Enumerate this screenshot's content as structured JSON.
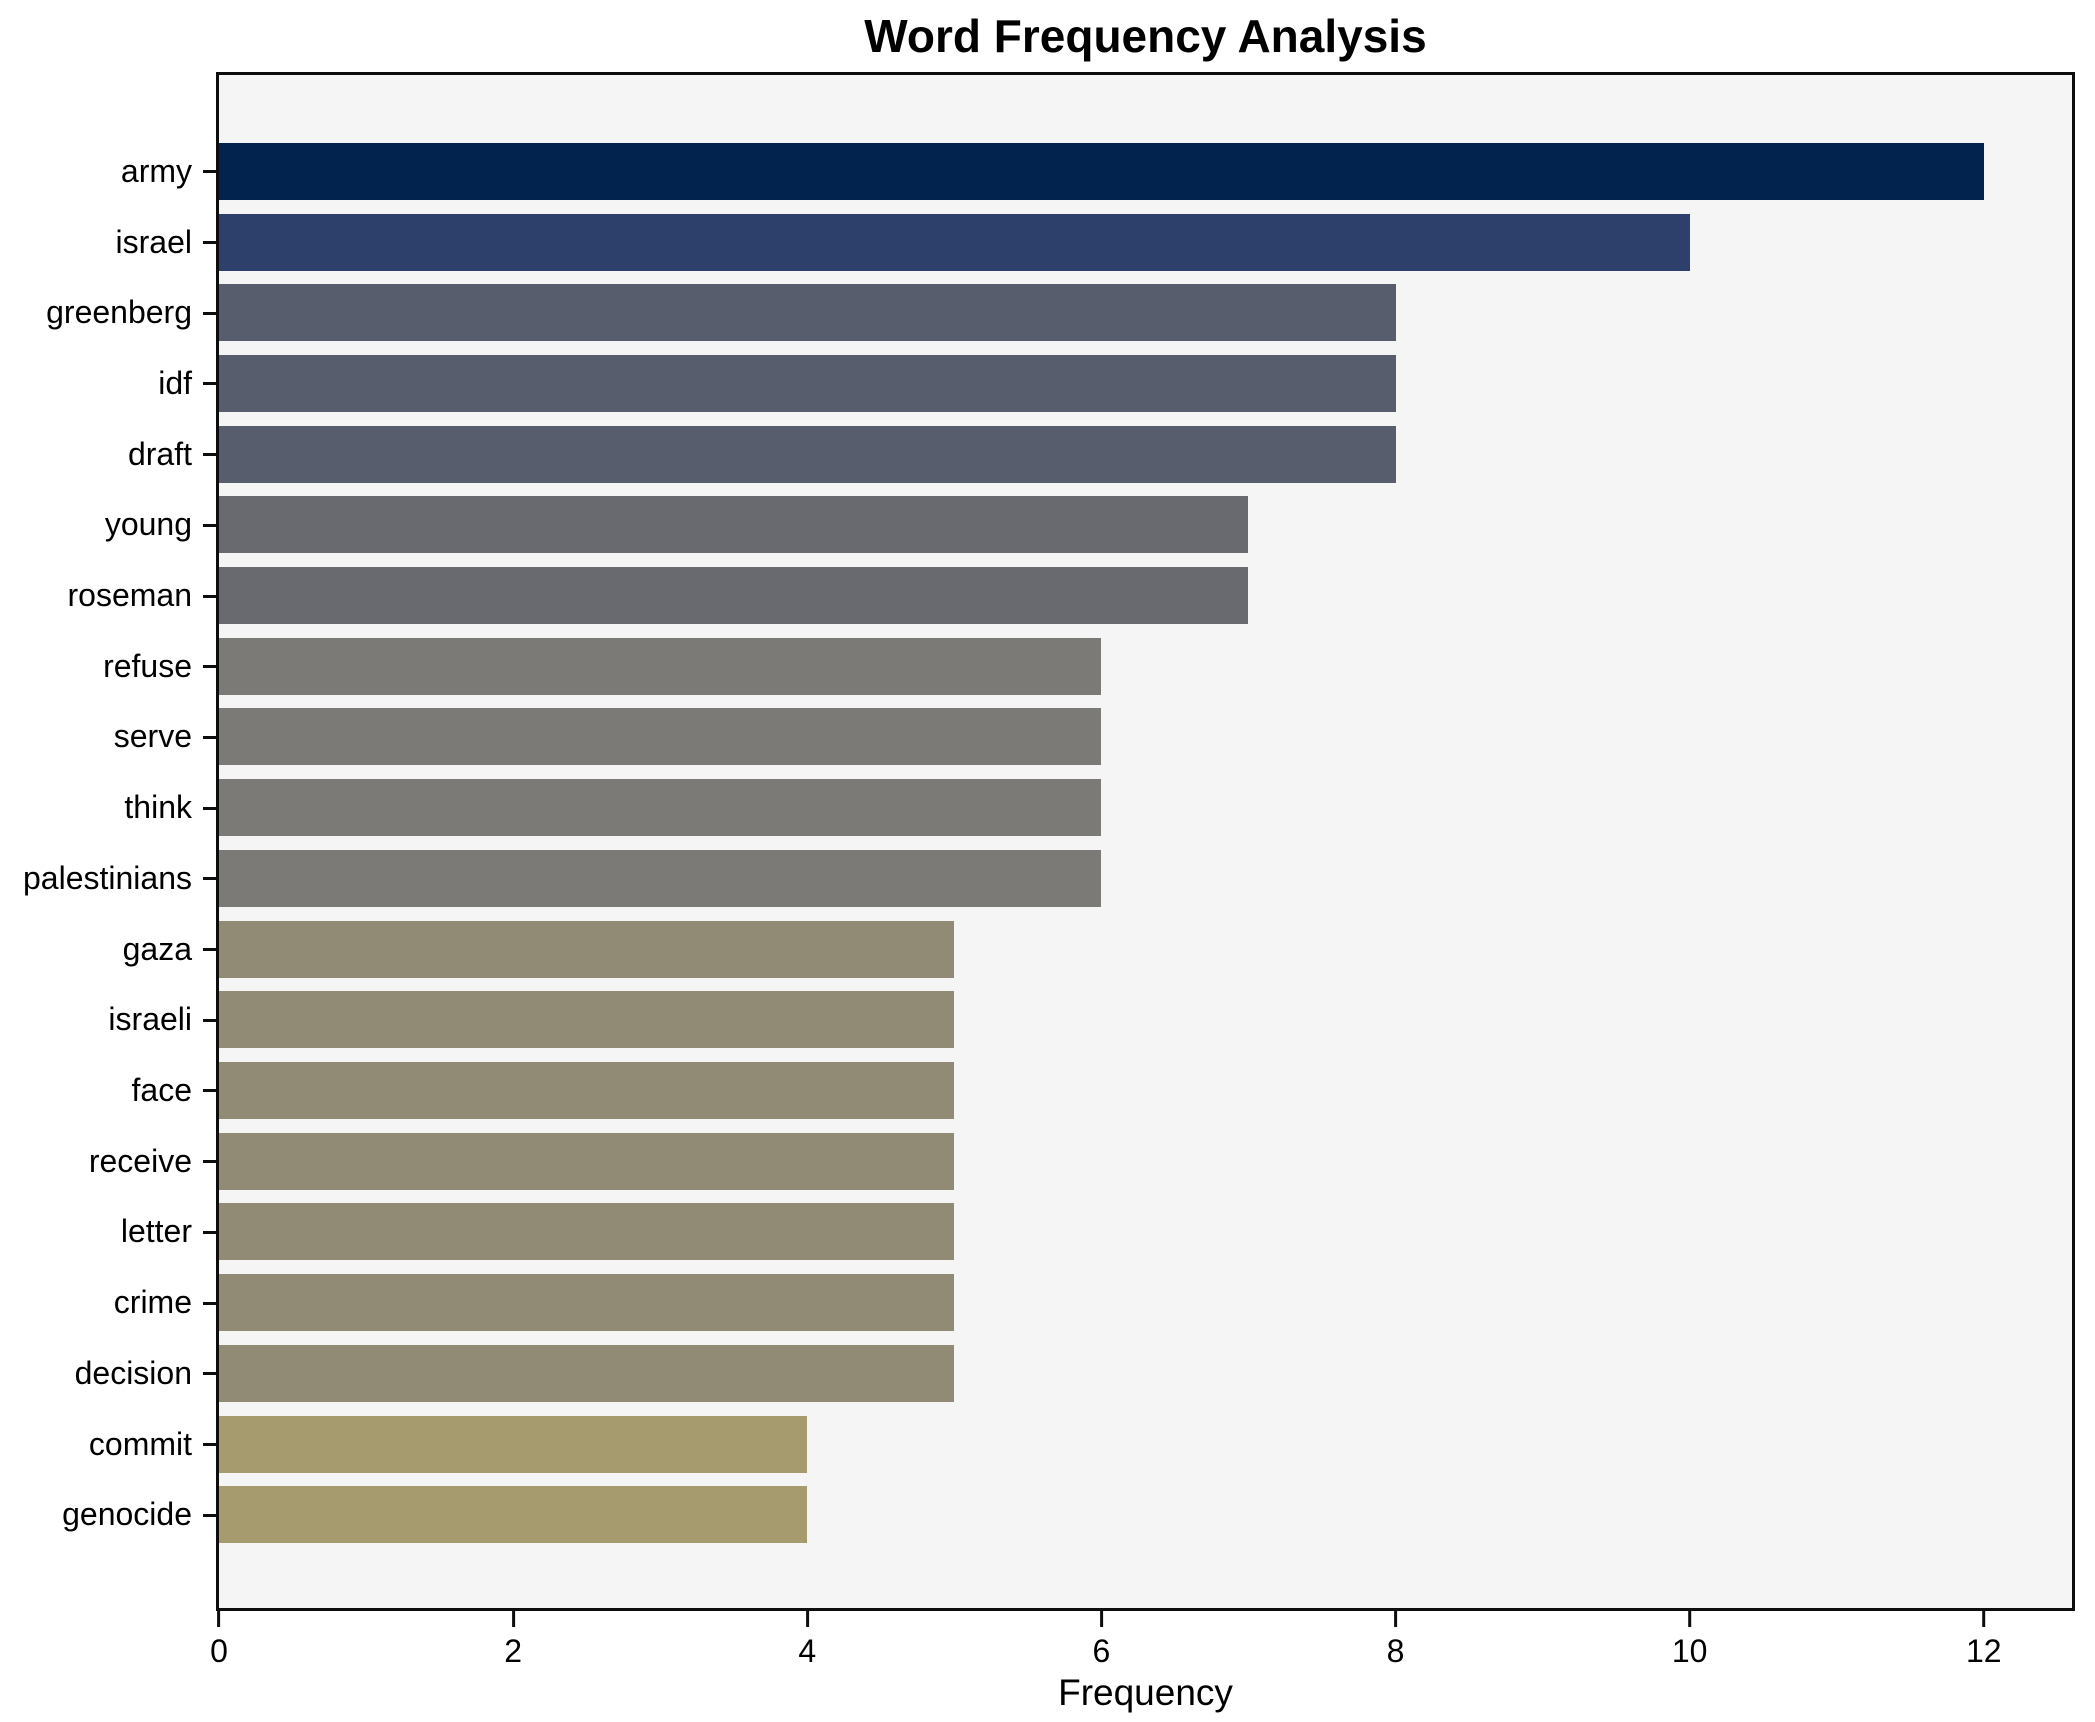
{
  "chart_data": {
    "type": "bar",
    "orientation": "horizontal",
    "title": "Word Frequency Analysis",
    "xlabel": "Frequency",
    "ylabel": "",
    "categories": [
      "army",
      "israel",
      "greenberg",
      "idf",
      "draft",
      "young",
      "roseman",
      "refuse",
      "serve",
      "think",
      "palestinians",
      "gaza",
      "israeli",
      "face",
      "receive",
      "letter",
      "crime",
      "decision",
      "commit",
      "genocide"
    ],
    "values": [
      12,
      10,
      8,
      8,
      8,
      7,
      7,
      6,
      6,
      6,
      6,
      5,
      5,
      5,
      5,
      5,
      5,
      5,
      4,
      4
    ],
    "bar_colors": [
      "#02234e",
      "#2d406b",
      "#575d6d",
      "#575d6d",
      "#575d6d",
      "#696a70",
      "#696a70",
      "#7b7a76",
      "#7b7a76",
      "#7b7a76",
      "#7b7a76",
      "#918a74",
      "#918a74",
      "#918a74",
      "#918a74",
      "#918a74",
      "#918a74",
      "#918a74",
      "#a59b6e",
      "#a59b6e"
    ],
    "xlim": [
      0,
      12.6
    ],
    "xticks": [
      0,
      2,
      4,
      6,
      8,
      10,
      12
    ],
    "grid": false,
    "legend": "none",
    "plot_background": "#f5f5f6",
    "figure_background": "#ffffff",
    "spine_color": "#0d0d0d",
    "text_color": "#000000"
  }
}
